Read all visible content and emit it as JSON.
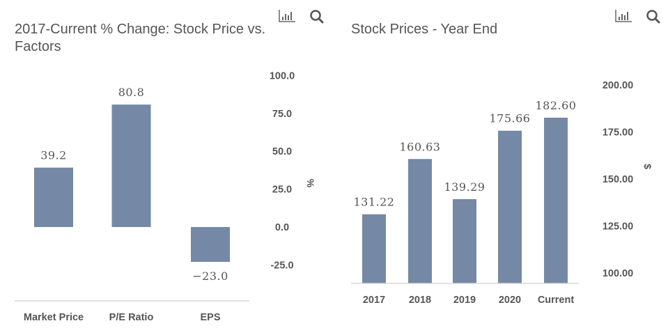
{
  "colors": {
    "bar": "#7588a5",
    "text": "#555555",
    "axis": "#d9d9d9"
  },
  "icons": {
    "chart_type": "bar-chart-icon",
    "zoom": "search-icon"
  },
  "chart_data": [
    {
      "type": "bar",
      "title_line1": "2017-Current % Change: Stock Price vs.",
      "title_line2": "Factors",
      "categories": [
        "Market Price",
        "P/E Ratio",
        "EPS"
      ],
      "values": [
        39.2,
        80.8,
        -23.0
      ],
      "data_labels": [
        "39.2",
        "80.8",
        "−23.0"
      ],
      "ylabel": "%",
      "yticks": [
        "100.0",
        "75.0",
        "50.0",
        "25.0",
        "0.0",
        "-25.0"
      ],
      "ytick_values": [
        100,
        75,
        50,
        25,
        0,
        -25
      ],
      "ylim": [
        -50,
        100
      ],
      "y_axis_position": "right",
      "grid": false
    },
    {
      "type": "bar",
      "title": "Stock Prices - Year End",
      "categories": [
        "2017",
        "2018",
        "2019",
        "2020",
        "Current"
      ],
      "values": [
        131.22,
        160.63,
        139.29,
        175.66,
        182.6
      ],
      "data_labels": [
        "131.22",
        "160.63",
        "139.29",
        "175.66",
        "182.60"
      ],
      "ylabel": "$",
      "yticks": [
        "200.00",
        "175.00",
        "150.00",
        "125.00",
        "100.00"
      ],
      "ytick_values": [
        200,
        175,
        150,
        125,
        100
      ],
      "ylim": [
        94.4,
        200
      ],
      "y_axis_position": "right",
      "grid": false
    }
  ]
}
